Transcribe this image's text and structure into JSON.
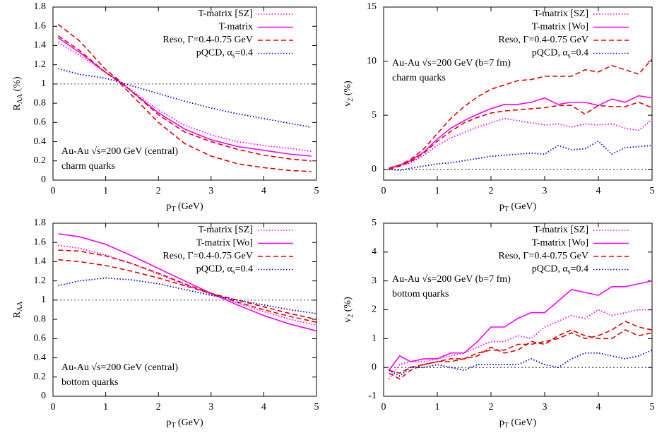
{
  "chart_data": [
    {
      "type": "line",
      "xlabel": [
        "p",
        "T",
        " (GeV)"
      ],
      "ylabel": [
        "R",
        "AA",
        " (%)"
      ],
      "xlim": [
        0,
        5
      ],
      "ylim": [
        0,
        1.8
      ],
      "xticks": [
        0,
        1,
        2,
        3,
        4,
        5
      ],
      "yticks": [
        0,
        0.2,
        0.4,
        0.6,
        0.8,
        1,
        1.2,
        1.4,
        1.6,
        1.8
      ],
      "reference_line": 1,
      "annotation_corner": "bottom-left",
      "annotation": [
        "Au-Au √s=200 GeV (central)",
        "charm quarks"
      ],
      "x": [
        0.1,
        0.5,
        1,
        1.25,
        1.5,
        2,
        2.5,
        3,
        3.5,
        4,
        4.5,
        4.9
      ],
      "series": [
        {
          "name": "T-matrix [SZ]",
          "color": "#ff00ff",
          "dash": "dotted",
          "values": [
            1.43,
            1.3,
            1.12,
            1.03,
            0.93,
            0.73,
            0.57,
            0.47,
            0.4,
            0.36,
            0.33,
            0.3
          ]
        },
        {
          "name": "T-matrix",
          "color": "#ff00ff",
          "dash": "solid",
          "values": [
            1.48,
            1.33,
            1.12,
            1.03,
            0.92,
            0.7,
            0.53,
            0.42,
            0.35,
            0.31,
            0.27,
            0.25
          ]
        },
        {
          "name": "Reso, Γ=0.4-0.75 GeV",
          "color": "#e00000",
          "dash": "dashed",
          "values": [
            1.62,
            1.45,
            1.15,
            1.04,
            0.92,
            0.68,
            0.5,
            0.4,
            0.32,
            0.26,
            0.22,
            0.2
          ],
          "values_2": [
            1.5,
            1.35,
            1.12,
            1.02,
            0.88,
            0.6,
            0.38,
            0.25,
            0.17,
            0.13,
            0.1,
            0.09
          ]
        },
        {
          "name": [
            "pQCD, α",
            "s",
            "=0.4"
          ],
          "color": "#0000e0",
          "dash": "dotted",
          "values": [
            1.16,
            1.1,
            1.06,
            1.02,
            0.98,
            0.9,
            0.82,
            0.75,
            0.69,
            0.64,
            0.59,
            0.55
          ]
        }
      ]
    },
    {
      "type": "line",
      "xlabel": [
        "p",
        "T",
        " (GeV)"
      ],
      "ylabel": [
        "v",
        "2",
        " (%)"
      ],
      "xlim": [
        0,
        5
      ],
      "ylim": [
        -1,
        15
      ],
      "xticks": [
        0,
        1,
        2,
        3,
        4,
        5
      ],
      "yticks": [
        0,
        5,
        10,
        15
      ],
      "reference_line": 0,
      "annotation_corner": "top-left",
      "annotation": [
        "Au-Au √s=200 GeV (b=7 fm)",
        "charm quarks"
      ],
      "x": [
        0.1,
        0.3,
        0.5,
        0.75,
        1,
        1.25,
        1.5,
        1.75,
        2,
        2.25,
        2.5,
        2.75,
        3,
        3.25,
        3.5,
        3.75,
        4,
        4.25,
        4.5,
        4.75,
        5
      ],
      "series": [
        {
          "name": "T-matrix [SZ]",
          "color": "#ff00ff",
          "dash": "dotted",
          "values": [
            0.1,
            0.3,
            0.6,
            1.3,
            2.2,
            2.9,
            3.4,
            3.9,
            4.3,
            4.7,
            4.5,
            4.3,
            4.1,
            4.2,
            3.9,
            4.2,
            4.1,
            4.2,
            3.8,
            3.6,
            4.6
          ]
        },
        {
          "name": "T-matrix [Wo]",
          "color": "#ff00ff",
          "dash": "solid",
          "values": [
            0.1,
            0.4,
            0.8,
            1.6,
            2.8,
            3.8,
            4.5,
            5.1,
            5.6,
            6.0,
            6.0,
            6.2,
            6.6,
            6.0,
            6.2,
            6.2,
            5.9,
            6.5,
            6.2,
            6.8,
            6.6
          ]
        },
        {
          "name": "Reso, Γ=0.4-0.75 GeV",
          "color": "#e00000",
          "dash": "dashed",
          "values": [
            0.1,
            0.4,
            0.9,
            1.9,
            3.3,
            4.7,
            5.8,
            6.7,
            7.4,
            7.8,
            8.2,
            8.3,
            8.6,
            8.6,
            8.6,
            9.2,
            9.0,
            9.6,
            9.2,
            8.8,
            10.2
          ],
          "values_2": [
            0,
            0.3,
            0.7,
            1.5,
            2.6,
            3.5,
            4.3,
            4.8,
            5.2,
            5.4,
            5.5,
            5.6,
            5.7,
            5.9,
            5.9,
            5.1,
            5.9,
            5.8,
            5.8,
            6.2,
            5.7
          ]
        },
        {
          "name": [
            "pQCD, α",
            "s",
            "=0.4"
          ],
          "color": "#0000e0",
          "dash": "dotted",
          "values": [
            0,
            -0.1,
            0.1,
            0.3,
            0.5,
            0.6,
            0.8,
            1.0,
            1.2,
            1.3,
            1.4,
            1.5,
            1.4,
            2.2,
            1.8,
            1.9,
            2.6,
            1.4,
            2.0,
            2.1,
            2.2
          ]
        }
      ]
    },
    {
      "type": "line",
      "xlabel": [
        "p",
        "T",
        " (GeV)"
      ],
      "ylabel": [
        "R",
        "AA",
        ""
      ],
      "xlim": [
        0,
        5
      ],
      "ylim": [
        0,
        1.8
      ],
      "xticks": [
        0,
        1,
        2,
        3,
        4,
        5
      ],
      "yticks": [
        0,
        0.2,
        0.4,
        0.6,
        0.8,
        1,
        1.2,
        1.4,
        1.6,
        1.8
      ],
      "reference_line": 1,
      "annotation_corner": "bottom-left",
      "annotation": [
        "Au-Au √s=200 GeV (central)",
        "bottom quarks"
      ],
      "x": [
        0.1,
        0.5,
        1,
        1.5,
        2,
        2.5,
        3,
        3.5,
        4,
        4.5,
        5
      ],
      "series": [
        {
          "name": "T-matrix [SZ]",
          "color": "#ff00ff",
          "dash": "dotted",
          "values": [
            1.57,
            1.54,
            1.47,
            1.38,
            1.27,
            1.16,
            1.06,
            0.97,
            0.88,
            0.8,
            0.74
          ]
        },
        {
          "name": "T-matrix [Wo]",
          "color": "#ff00ff",
          "dash": "solid",
          "values": [
            1.69,
            1.66,
            1.58,
            1.46,
            1.33,
            1.2,
            1.07,
            0.95,
            0.84,
            0.75,
            0.68
          ]
        },
        {
          "name": "Reso, Γ=0.4-0.75 GeV",
          "color": "#e00000",
          "dash": "dashed",
          "values": [
            1.52,
            1.51,
            1.46,
            1.38,
            1.28,
            1.17,
            1.07,
            0.98,
            0.9,
            0.83,
            0.77
          ],
          "values_2": [
            1.42,
            1.4,
            1.36,
            1.3,
            1.23,
            1.15,
            1.07,
            1.0,
            0.93,
            0.86,
            0.8
          ]
        },
        {
          "name": [
            "pQCD, α",
            "s",
            "=0.4"
          ],
          "color": "#0000e0",
          "dash": "dotted",
          "values": [
            1.15,
            1.2,
            1.23,
            1.21,
            1.17,
            1.11,
            1.05,
            1.0,
            0.95,
            0.9,
            0.86
          ]
        }
      ]
    },
    {
      "type": "line",
      "xlabel": [
        "p",
        "T",
        " (GeV)"
      ],
      "ylabel": [
        "v",
        "2",
        " (%)"
      ],
      "xlim": [
        0,
        5
      ],
      "ylim": [
        -1,
        5
      ],
      "xticks": [
        0,
        1,
        2,
        3,
        4,
        5
      ],
      "yticks": [
        -1,
        0,
        1,
        2,
        3,
        4,
        5
      ],
      "reference_line": 0,
      "annotation_corner": "top-left",
      "annotation": [
        "Au-Au √s=200 GeV (b=7 fm)",
        "bottom quarks"
      ],
      "x": [
        0.1,
        0.3,
        0.5,
        0.75,
        1,
        1.25,
        1.5,
        1.75,
        2,
        2.25,
        2.5,
        2.75,
        3,
        3.25,
        3.5,
        3.75,
        4,
        4.25,
        4.5,
        4.75,
        5
      ],
      "series": [
        {
          "name": "T-matrix [SZ]",
          "color": "#ff00ff",
          "dash": "dotted",
          "values": [
            -0.4,
            0.1,
            0.2,
            0.2,
            0.3,
            0.4,
            0.5,
            0.7,
            0.9,
            0.9,
            1.1,
            1.0,
            1.4,
            1.6,
            1.8,
            1.7,
            2.0,
            1.8,
            1.9,
            2.0,
            2.0
          ]
        },
        {
          "name": "T-matrix [Wo]",
          "color": "#ff00ff",
          "dash": "solid",
          "values": [
            -0.1,
            0.4,
            0.2,
            0.3,
            0.3,
            0.5,
            0.5,
            0.9,
            1.4,
            1.4,
            1.7,
            1.9,
            1.9,
            2.3,
            2.7,
            2.6,
            2.5,
            2.8,
            2.8,
            2.9,
            3.0
          ]
        },
        {
          "name": "Reso, Γ=0.4-0.75 GeV",
          "color": "#e00000",
          "dash": "dashed",
          "values": [
            -0.1,
            -0.2,
            0.0,
            0.1,
            0.2,
            0.3,
            0.3,
            0.5,
            0.6,
            0.6,
            0.8,
            0.8,
            0.9,
            1.0,
            1.2,
            1.0,
            1.1,
            1.3,
            1.6,
            1.4,
            1.3
          ],
          "values_2": [
            -0.2,
            -0.4,
            -0.1,
            0.1,
            0.2,
            0.2,
            0.3,
            0.4,
            0.7,
            0.5,
            0.6,
            0.9,
            0.8,
            1.1,
            1.3,
            1.1,
            1.0,
            1.0,
            1.3,
            1.1,
            1.2
          ]
        },
        {
          "name": [
            "pQCD, α",
            "s",
            "=0.4"
          ],
          "color": "#0000e0",
          "dash": "dotted",
          "values": [
            -0.1,
            -0.3,
            0.0,
            0.0,
            0.1,
            0.0,
            -0.1,
            0.1,
            0.1,
            0.1,
            0.1,
            0.3,
            0.1,
            0.0,
            0.3,
            0.5,
            0.5,
            0.4,
            0.3,
            0.4,
            0.6
          ]
        }
      ]
    }
  ]
}
